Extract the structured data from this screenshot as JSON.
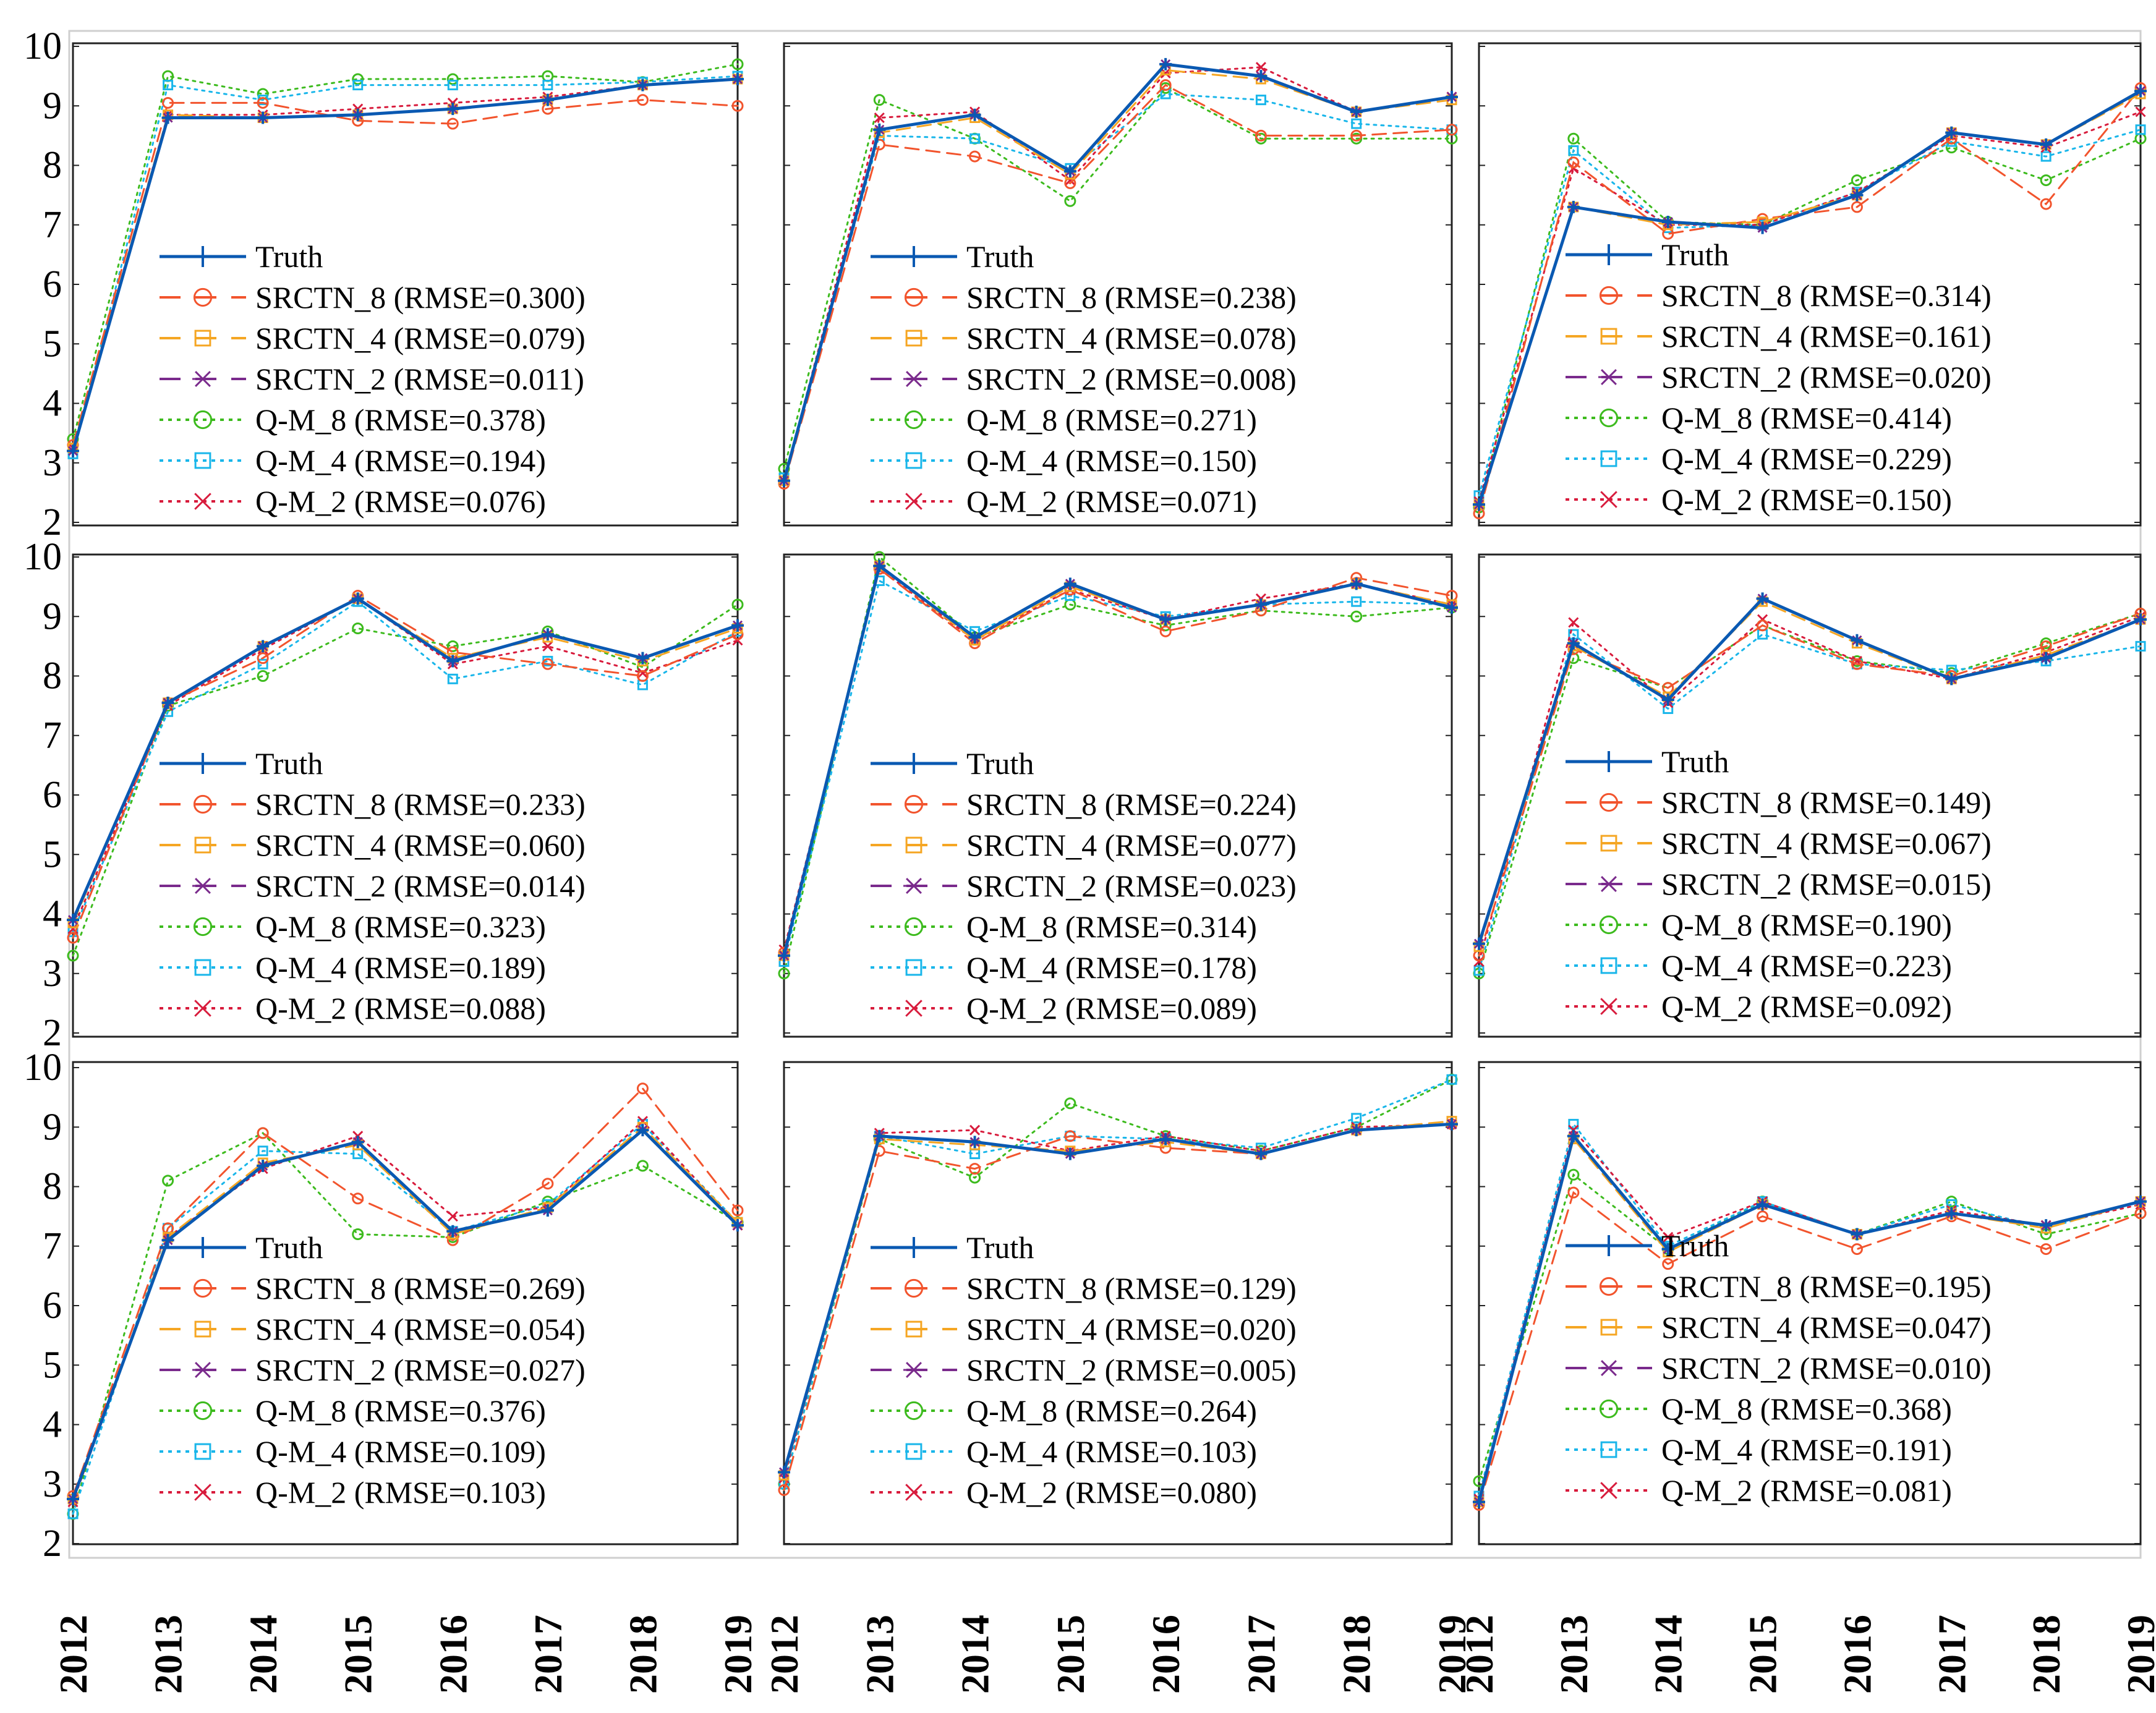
{
  "x_tick_labels": [
    "2012",
    "2013",
    "2014",
    "2015",
    "2016",
    "2017",
    "2018",
    "2019"
  ],
  "y_tick_labels": [
    "2",
    "3",
    "4",
    "5",
    "6",
    "7",
    "8",
    "9",
    "10"
  ],
  "series_styles": {
    "Truth": {
      "color": "#0a59b2",
      "dash": "solid",
      "marker": "plus"
    },
    "SRCTN_8": {
      "color": "#f2542d",
      "dash": "dashed",
      "marker": "circle"
    },
    "SRCTN_4": {
      "color": "#f5a623",
      "dash": "dashed",
      "marker": "square"
    },
    "SRCTN_2": {
      "color": "#7a2a8c",
      "dash": "dashed",
      "marker": "star"
    },
    "Q-M_8": {
      "color": "#3dbb1e",
      "dash": "dotted",
      "marker": "circle"
    },
    "Q-M_4": {
      "color": "#19b6ea",
      "dash": "dotted",
      "marker": "square"
    },
    "Q-M_2": {
      "color": "#d81b3c",
      "dash": "dotted",
      "marker": "x"
    }
  },
  "chart_data": [
    {
      "type": "line",
      "x": [
        "2012",
        "2013",
        "2014",
        "2015",
        "2016",
        "2017",
        "2018",
        "2019"
      ],
      "ylim": [
        2,
        10
      ],
      "legend": [
        "Truth",
        "SRCTN_8 (RMSE=0.300)",
        "SRCTN_4 (RMSE=0.079)",
        "SRCTN_2 (RMSE=0.011)",
        "Q-M_8 (RMSE=0.378)",
        "Q-M_4 (RMSE=0.194)",
        "Q-M_2 (RMSE=0.076)"
      ],
      "series": [
        {
          "name": "Truth",
          "values": [
            3.2,
            8.8,
            8.8,
            8.85,
            8.95,
            9.1,
            9.35,
            9.45
          ]
        },
        {
          "name": "SRCTN_8",
          "values": [
            3.3,
            9.05,
            9.05,
            8.75,
            8.7,
            8.95,
            9.1,
            9.0
          ]
        },
        {
          "name": "SRCTN_4",
          "values": [
            3.25,
            8.85,
            8.8,
            8.85,
            8.95,
            9.1,
            9.35,
            9.45
          ]
        },
        {
          "name": "SRCTN_2",
          "values": [
            3.2,
            8.8,
            8.8,
            8.85,
            8.95,
            9.1,
            9.35,
            9.45
          ]
        },
        {
          "name": "Q-M_8",
          "values": [
            3.4,
            9.5,
            9.2,
            9.45,
            9.45,
            9.5,
            9.4,
            9.7
          ]
        },
        {
          "name": "Q-M_4",
          "values": [
            3.15,
            9.35,
            9.1,
            9.35,
            9.35,
            9.35,
            9.4,
            9.5
          ]
        },
        {
          "name": "Q-M_2",
          "values": [
            3.25,
            8.85,
            8.85,
            8.95,
            9.05,
            9.15,
            9.35,
            9.45
          ]
        }
      ]
    },
    {
      "type": "line",
      "x": [
        "2012",
        "2013",
        "2014",
        "2015",
        "2016",
        "2017",
        "2018",
        "2019"
      ],
      "ylim": [
        2,
        10
      ],
      "legend": [
        "Truth",
        "SRCTN_8 (RMSE=0.238)",
        "SRCTN_4 (RMSE=0.078)",
        "SRCTN_2 (RMSE=0.008)",
        "Q-M_8 (RMSE=0.271)",
        "Q-M_4 (RMSE=0.150)",
        "Q-M_2 (RMSE=0.071)"
      ],
      "series": [
        {
          "name": "Truth",
          "values": [
            2.7,
            8.6,
            8.85,
            7.9,
            9.7,
            9.5,
            8.9,
            9.15
          ]
        },
        {
          "name": "SRCTN_8",
          "values": [
            2.65,
            8.35,
            8.15,
            7.7,
            9.35,
            8.5,
            8.5,
            8.6
          ]
        },
        {
          "name": "SRCTN_4",
          "values": [
            2.7,
            8.55,
            8.8,
            7.85,
            9.6,
            9.45,
            8.9,
            9.1
          ]
        },
        {
          "name": "SRCTN_2",
          "values": [
            2.7,
            8.6,
            8.85,
            7.9,
            9.7,
            9.5,
            8.9,
            9.15
          ]
        },
        {
          "name": "Q-M_8",
          "values": [
            2.9,
            9.1,
            8.45,
            7.4,
            9.3,
            8.45,
            8.45,
            8.45
          ]
        },
        {
          "name": "Q-M_4",
          "values": [
            2.75,
            8.5,
            8.45,
            7.95,
            9.2,
            9.1,
            8.7,
            8.6
          ]
        },
        {
          "name": "Q-M_2",
          "values": [
            2.7,
            8.8,
            8.9,
            7.75,
            9.55,
            9.65,
            8.9,
            9.15
          ]
        }
      ]
    },
    {
      "type": "line",
      "x": [
        "2012",
        "2013",
        "2014",
        "2015",
        "2016",
        "2017",
        "2018",
        "2019"
      ],
      "ylim": [
        2,
        10
      ],
      "legend": [
        "Truth",
        "SRCTN_8 (RMSE=0.314)",
        "SRCTN_4 (RMSE=0.161)",
        "SRCTN_2 (RMSE=0.020)",
        "Q-M_8 (RMSE=0.414)",
        "Q-M_4 (RMSE=0.229)",
        "Q-M_2 (RMSE=0.150)"
      ],
      "series": [
        {
          "name": "Truth",
          "values": [
            2.3,
            7.3,
            7.05,
            6.95,
            7.5,
            8.55,
            8.35,
            9.25
          ]
        },
        {
          "name": "SRCTN_8",
          "values": [
            2.15,
            8.05,
            6.85,
            7.1,
            7.3,
            8.45,
            7.35,
            9.3
          ]
        },
        {
          "name": "SRCTN_4",
          "values": [
            2.3,
            7.3,
            7.0,
            7.05,
            7.5,
            8.55,
            8.35,
            9.2
          ]
        },
        {
          "name": "SRCTN_2",
          "values": [
            2.3,
            7.3,
            7.05,
            6.95,
            7.5,
            8.55,
            8.35,
            9.25
          ]
        },
        {
          "name": "Q-M_8",
          "values": [
            2.25,
            8.45,
            7.05,
            7.0,
            7.75,
            8.3,
            7.75,
            8.45
          ]
        },
        {
          "name": "Q-M_4",
          "values": [
            2.45,
            8.25,
            6.95,
            7.0,
            7.55,
            8.4,
            8.15,
            8.6
          ]
        },
        {
          "name": "Q-M_2",
          "values": [
            2.35,
            7.95,
            7.0,
            7.0,
            7.55,
            8.5,
            8.3,
            8.9
          ]
        }
      ]
    },
    {
      "type": "line",
      "x": [
        "2012",
        "2013",
        "2014",
        "2015",
        "2016",
        "2017",
        "2018",
        "2019"
      ],
      "ylim": [
        2,
        10
      ],
      "legend": [
        "Truth",
        "SRCTN_8 (RMSE=0.233)",
        "SRCTN_4 (RMSE=0.060)",
        "SRCTN_2 (RMSE=0.014)",
        "Q-M_8 (RMSE=0.323)",
        "Q-M_4 (RMSE=0.189)",
        "Q-M_2 (RMSE=0.088)"
      ],
      "series": [
        {
          "name": "Truth",
          "values": [
            3.9,
            7.55,
            8.5,
            9.3,
            8.25,
            8.7,
            8.3,
            8.85
          ]
        },
        {
          "name": "SRCTN_8",
          "values": [
            3.6,
            7.55,
            8.3,
            9.35,
            8.4,
            8.2,
            8.0,
            8.7
          ]
        },
        {
          "name": "SRCTN_4",
          "values": [
            3.85,
            7.55,
            8.5,
            9.3,
            8.3,
            8.65,
            8.25,
            8.8
          ]
        },
        {
          "name": "SRCTN_2",
          "values": [
            3.9,
            7.55,
            8.5,
            9.3,
            8.25,
            8.7,
            8.3,
            8.85
          ]
        },
        {
          "name": "Q-M_8",
          "values": [
            3.3,
            7.5,
            8.0,
            8.8,
            8.5,
            8.75,
            8.15,
            9.2
          ]
        },
        {
          "name": "Q-M_4",
          "values": [
            3.7,
            7.4,
            8.2,
            9.25,
            7.95,
            8.25,
            7.85,
            8.75
          ]
        },
        {
          "name": "Q-M_2",
          "values": [
            3.75,
            7.5,
            8.45,
            9.3,
            8.2,
            8.5,
            8.05,
            8.6
          ]
        }
      ]
    },
    {
      "type": "line",
      "x": [
        "2012",
        "2013",
        "2014",
        "2015",
        "2016",
        "2017",
        "2018",
        "2019"
      ],
      "ylim": [
        2,
        10
      ],
      "legend": [
        "Truth",
        "SRCTN_8 (RMSE=0.224)",
        "SRCTN_4 (RMSE=0.077)",
        "SRCTN_2 (RMSE=0.023)",
        "Q-M_8 (RMSE=0.314)",
        "Q-M_4 (RMSE=0.178)",
        "Q-M_2 (RMSE=0.089)"
      ],
      "series": [
        {
          "name": "Truth",
          "values": [
            3.3,
            9.85,
            8.65,
            9.55,
            8.95,
            9.2,
            9.55,
            9.15
          ]
        },
        {
          "name": "SRCTN_8",
          "values": [
            3.35,
            9.8,
            8.55,
            9.45,
            8.75,
            9.1,
            9.65,
            9.35
          ]
        },
        {
          "name": "SRCTN_4",
          "values": [
            3.3,
            9.85,
            8.6,
            9.5,
            8.95,
            9.2,
            9.55,
            9.2
          ]
        },
        {
          "name": "SRCTN_2",
          "values": [
            3.3,
            9.85,
            8.65,
            9.55,
            8.95,
            9.2,
            9.55,
            9.15
          ]
        },
        {
          "name": "Q-M_8",
          "values": [
            3.0,
            10.0,
            8.65,
            9.2,
            8.85,
            9.1,
            9.0,
            9.15
          ]
        },
        {
          "name": "Q-M_4",
          "values": [
            3.2,
            9.6,
            8.75,
            9.35,
            9.0,
            9.2,
            9.25,
            9.2
          ]
        },
        {
          "name": "Q-M_2",
          "values": [
            3.4,
            9.8,
            8.6,
            9.45,
            8.95,
            9.3,
            9.55,
            9.2
          ]
        }
      ]
    },
    {
      "type": "line",
      "x": [
        "2012",
        "2013",
        "2014",
        "2015",
        "2016",
        "2017",
        "2018",
        "2019"
      ],
      "ylim": [
        2,
        10
      ],
      "legend": [
        "Truth",
        "SRCTN_8 (RMSE=0.149)",
        "SRCTN_4 (RMSE=0.067)",
        "SRCTN_2 (RMSE=0.015)",
        "Q-M_8 (RMSE=0.190)",
        "Q-M_4 (RMSE=0.223)",
        "Q-M_2 (RMSE=0.092)"
      ],
      "series": [
        {
          "name": "Truth",
          "values": [
            3.5,
            8.55,
            7.6,
            9.3,
            8.6,
            7.95,
            8.3,
            8.95
          ]
        },
        {
          "name": "SRCTN_8",
          "values": [
            3.3,
            8.45,
            7.8,
            8.85,
            8.2,
            8.0,
            8.5,
            9.05
          ]
        },
        {
          "name": "SRCTN_4",
          "values": [
            3.45,
            8.5,
            7.65,
            9.25,
            8.55,
            7.95,
            8.35,
            8.95
          ]
        },
        {
          "name": "SRCTN_2",
          "values": [
            3.5,
            8.55,
            7.6,
            9.3,
            8.6,
            7.95,
            8.3,
            8.95
          ]
        },
        {
          "name": "Q-M_8",
          "values": [
            3.0,
            8.3,
            7.8,
            8.85,
            8.25,
            8.05,
            8.55,
            9.05
          ]
        },
        {
          "name": "Q-M_4",
          "values": [
            3.05,
            8.7,
            7.45,
            8.7,
            8.2,
            8.1,
            8.25,
            8.5
          ]
        },
        {
          "name": "Q-M_2",
          "values": [
            3.2,
            8.9,
            7.55,
            8.95,
            8.25,
            7.95,
            8.4,
            9.0
          ]
        }
      ]
    },
    {
      "type": "line",
      "x": [
        "2012",
        "2013",
        "2014",
        "2015",
        "2016",
        "2017",
        "2018",
        "2019"
      ],
      "ylim": [
        2,
        10
      ],
      "legend": [
        "Truth",
        "SRCTN_8 (RMSE=0.269)",
        "SRCTN_4 (RMSE=0.054)",
        "SRCTN_2 (RMSE=0.027)",
        "Q-M_8 (RMSE=0.376)",
        "Q-M_4 (RMSE=0.109)",
        "Q-M_2 (RMSE=0.103)"
      ],
      "series": [
        {
          "name": "Truth",
          "values": [
            2.75,
            7.1,
            8.35,
            8.75,
            7.25,
            7.6,
            8.95,
            7.35
          ]
        },
        {
          "name": "SRCTN_8",
          "values": [
            2.8,
            7.3,
            8.9,
            7.8,
            7.1,
            8.05,
            9.65,
            7.6
          ]
        },
        {
          "name": "SRCTN_4",
          "values": [
            2.75,
            7.15,
            8.4,
            8.7,
            7.2,
            7.65,
            9.0,
            7.4
          ]
        },
        {
          "name": "SRCTN_2",
          "values": [
            2.75,
            7.1,
            8.35,
            8.75,
            7.25,
            7.6,
            8.95,
            7.35
          ]
        },
        {
          "name": "Q-M_8",
          "values": [
            2.5,
            8.1,
            8.9,
            7.2,
            7.15,
            7.75,
            8.35,
            7.4
          ]
        },
        {
          "name": "Q-M_4",
          "values": [
            2.5,
            7.3,
            8.6,
            8.55,
            7.25,
            7.7,
            9.05,
            7.4
          ]
        },
        {
          "name": "Q-M_2",
          "values": [
            2.7,
            7.15,
            8.3,
            8.85,
            7.5,
            7.65,
            9.1,
            7.35
          ]
        }
      ]
    },
    {
      "type": "line",
      "x": [
        "2012",
        "2013",
        "2014",
        "2015",
        "2016",
        "2017",
        "2018",
        "2019"
      ],
      "ylim": [
        2,
        10
      ],
      "legend": [
        "Truth",
        "SRCTN_8 (RMSE=0.129)",
        "SRCTN_4 (RMSE=0.020)",
        "SRCTN_2 (RMSE=0.005)",
        "Q-M_8 (RMSE=0.264)",
        "Q-M_4 (RMSE=0.103)",
        "Q-M_2 (RMSE=0.080)"
      ],
      "series": [
        {
          "name": "Truth",
          "values": [
            3.2,
            8.85,
            8.75,
            8.55,
            8.8,
            8.55,
            8.95,
            9.05
          ]
        },
        {
          "name": "SRCTN_8",
          "values": [
            2.9,
            8.6,
            8.3,
            8.85,
            8.65,
            8.55,
            8.95,
            9.05
          ]
        },
        {
          "name": "SRCTN_4",
          "values": [
            3.15,
            8.8,
            8.7,
            8.6,
            8.75,
            8.55,
            8.95,
            9.1
          ]
        },
        {
          "name": "SRCTN_2",
          "values": [
            3.2,
            8.85,
            8.75,
            8.55,
            8.8,
            8.55,
            8.95,
            9.05
          ]
        },
        {
          "name": "Q-M_8",
          "values": [
            3.0,
            8.8,
            8.15,
            9.4,
            8.85,
            8.6,
            9.0,
            9.8
          ]
        },
        {
          "name": "Q-M_4",
          "values": [
            3.0,
            8.85,
            8.55,
            8.85,
            8.8,
            8.65,
            9.15,
            9.8
          ]
        },
        {
          "name": "Q-M_2",
          "values": [
            3.1,
            8.9,
            8.95,
            8.6,
            8.85,
            8.6,
            9.0,
            9.05
          ]
        }
      ]
    },
    {
      "type": "line",
      "x": [
        "2012",
        "2013",
        "2014",
        "2015",
        "2016",
        "2017",
        "2018",
        "2019"
      ],
      "ylim": [
        2,
        10
      ],
      "legend": [
        "Truth",
        "SRCTN_8 (RMSE=0.195)",
        "SRCTN_4 (RMSE=0.047)",
        "SRCTN_2 (RMSE=0.010)",
        "Q-M_8 (RMSE=0.368)",
        "Q-M_4 (RMSE=0.191)",
        "Q-M_2 (RMSE=0.081)"
      ],
      "series": [
        {
          "name": "Truth",
          "values": [
            2.7,
            8.85,
            6.95,
            7.7,
            7.2,
            7.55,
            7.35,
            7.75
          ]
        },
        {
          "name": "SRCTN_8",
          "values": [
            2.65,
            7.9,
            6.7,
            7.5,
            6.95,
            7.5,
            6.95,
            7.55
          ]
        },
        {
          "name": "SRCTN_4",
          "values": [
            2.7,
            8.8,
            6.9,
            7.7,
            7.2,
            7.55,
            7.3,
            7.75
          ]
        },
        {
          "name": "SRCTN_2",
          "values": [
            2.7,
            8.85,
            6.95,
            7.7,
            7.2,
            7.55,
            7.35,
            7.75
          ]
        },
        {
          "name": "Q-M_8",
          "values": [
            3.05,
            8.2,
            6.95,
            7.75,
            7.2,
            7.75,
            7.2,
            7.55
          ]
        },
        {
          "name": "Q-M_4",
          "values": [
            2.8,
            9.05,
            7.0,
            7.75,
            7.2,
            7.7,
            7.3,
            7.75
          ]
        },
        {
          "name": "Q-M_2",
          "values": [
            2.75,
            8.95,
            7.15,
            7.75,
            7.2,
            7.6,
            7.35,
            7.7
          ]
        }
      ]
    }
  ]
}
